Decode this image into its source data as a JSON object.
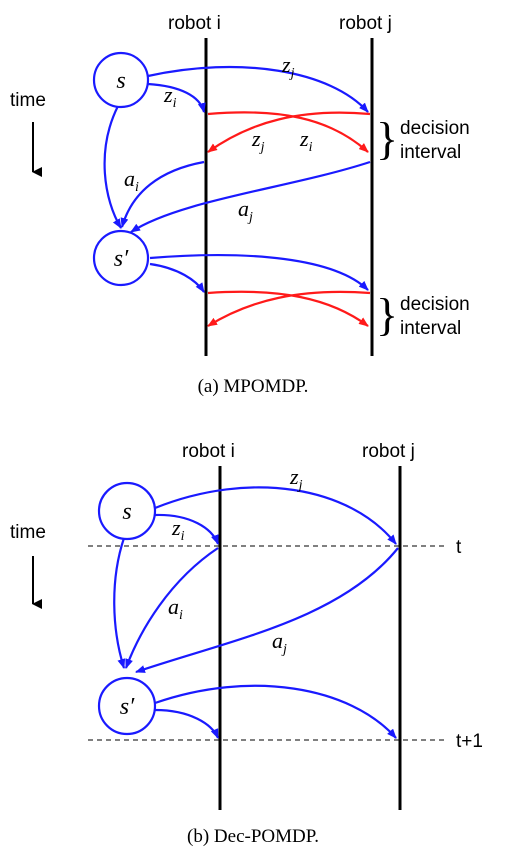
{
  "colors": {
    "observation_arrow": "#1a1aff",
    "message_arrow": "#ff1a1a",
    "timeline": "#000000"
  },
  "panel_a": {
    "robot_i": "robot i",
    "robot_j": "robot j",
    "time_label": "time",
    "state": "s",
    "next_state": "s′",
    "zi_label": "z",
    "zi_sub": "i",
    "zj_label": "z",
    "zj_sub": "j",
    "ai_label": "a",
    "ai_sub": "i",
    "aj_label": "a",
    "aj_sub": "j",
    "cross_zj": "z",
    "cross_zj_sub": "j",
    "cross_zi": "z",
    "cross_zi_sub": "i",
    "brace1_line1": "decision",
    "brace1_line2": "interval",
    "brace2_line1": "decision",
    "brace2_line2": "interval",
    "caption": "(a) MPOMDP."
  },
  "panel_b": {
    "robot_i": "robot i",
    "robot_j": "robot j",
    "time_label": "time",
    "state": "s",
    "next_state": "s′",
    "zi_label": "z",
    "zi_sub": "i",
    "zj_label": "z",
    "zj_sub": "j",
    "ai_label": "a",
    "ai_sub": "i",
    "aj_label": "a",
    "aj_sub": "j",
    "t_label": "t",
    "t1_label": "t+1",
    "caption": "(b) Dec-POMDP."
  }
}
